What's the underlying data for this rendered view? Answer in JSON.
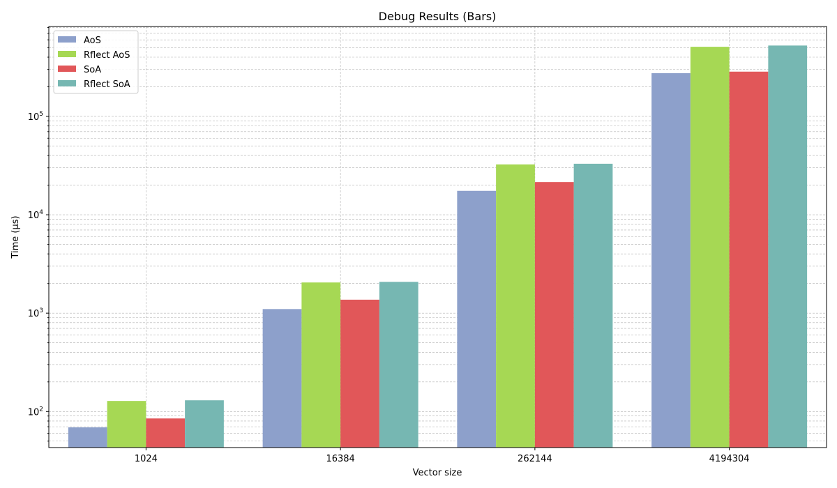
{
  "chart_data": {
    "type": "bar",
    "title": "Debug Results (Bars)",
    "xlabel": "Vector size",
    "ylabel": "Time (µs)",
    "yscale": "log",
    "ylim": [
      43,
      820000
    ],
    "grid": true,
    "legend_position": "top-left",
    "categories": [
      "1024",
      "16384",
      "262144",
      "4194304"
    ],
    "y_tick_labels": [
      {
        "value": 100,
        "base": "10",
        "exp": "2"
      },
      {
        "value": 1000,
        "base": "10",
        "exp": "3"
      },
      {
        "value": 10000,
        "base": "10",
        "exp": "4"
      },
      {
        "value": 100000,
        "base": "10",
        "exp": "5"
      }
    ],
    "series": [
      {
        "name": "AoS",
        "color": "#8da0cb",
        "values": [
          69,
          1100,
          17500,
          275000
        ]
      },
      {
        "name": "Rflect AoS",
        "color": "#a6d854",
        "values": [
          128,
          2050,
          32500,
          510000
        ]
      },
      {
        "name": "SoA",
        "color": "#e15759",
        "values": [
          85,
          1370,
          21500,
          285000
        ]
      },
      {
        "name": "Rflect SoA",
        "color": "#76b7b2",
        "values": [
          130,
          2080,
          33000,
          525000
        ]
      }
    ]
  }
}
